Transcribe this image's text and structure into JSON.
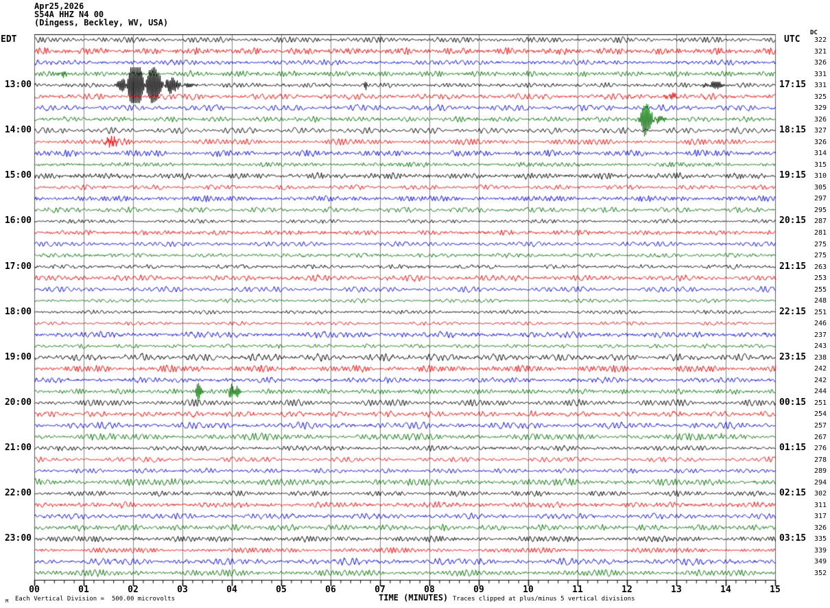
{
  "header": {
    "date": "Apr25,2026",
    "station_line": "S54A HHZ N4 00",
    "location_line": "(Dingess, Beckley, WV, USA)"
  },
  "axis": {
    "left_timezone": "EDT",
    "right_timezone": "UTC",
    "dc_column_header": "DC",
    "x_axis_label": "TIME (MINUTES)",
    "x_tick_labels": [
      "00",
      "01",
      "02",
      "03",
      "04",
      "05",
      "06",
      "07",
      "08",
      "09",
      "10",
      "11",
      "12",
      "13",
      "14",
      "15"
    ]
  },
  "footer": {
    "corner_mark": "M",
    "scale_note": "Each Vertical Division =  500.00 microvolts",
    "clip_note": "Traces clipped at plus/minus 5 vertical divisions"
  },
  "chart_data": {
    "type": "line",
    "subtype": "helicorder-seismogram",
    "station": "S54A HHZ N4 00",
    "date": "Apr25,2026",
    "lines": 48,
    "minutes_per_line": 15,
    "x_range_minutes": [
      0,
      15
    ],
    "first_line_start_edt": "12:00",
    "grid": "vertical gridline every minute, minor x-ticks every 0.2 minute",
    "microvolts_per_division": 500.0,
    "clip_divisions": 5,
    "trace_colors": [
      "#000000",
      "#ee0000",
      "#0000dd",
      "#007000"
    ],
    "grid_color": "#828282",
    "border_color": "#555555",
    "left_hour_labels": [
      {
        "row": 4,
        "label": "13:00"
      },
      {
        "row": 8,
        "label": "14:00"
      },
      {
        "row": 12,
        "label": "15:00"
      },
      {
        "row": 16,
        "label": "16:00"
      },
      {
        "row": 20,
        "label": "17:00"
      },
      {
        "row": 24,
        "label": "18:00"
      },
      {
        "row": 28,
        "label": "19:00"
      },
      {
        "row": 32,
        "label": "20:00"
      },
      {
        "row": 36,
        "label": "21:00"
      },
      {
        "row": 40,
        "label": "22:00"
      },
      {
        "row": 44,
        "label": "23:00"
      }
    ],
    "right_utc_labels": [
      {
        "row": 4,
        "label": "17:15"
      },
      {
        "row": 8,
        "label": "18:15"
      },
      {
        "row": 12,
        "label": "19:15"
      },
      {
        "row": 16,
        "label": "20:15"
      },
      {
        "row": 20,
        "label": "21:15"
      },
      {
        "row": 24,
        "label": "22:15"
      },
      {
        "row": 28,
        "label": "23:15"
      },
      {
        "row": 32,
        "label": "00:15"
      },
      {
        "row": 36,
        "label": "01:15"
      },
      {
        "row": 40,
        "label": "02:15"
      },
      {
        "row": 44,
        "label": "03:15"
      }
    ],
    "dc_offsets": [
      322,
      321,
      326,
      331,
      331,
      325,
      329,
      326,
      327,
      326,
      314,
      315,
      310,
      305,
      297,
      295,
      287,
      281,
      275,
      275,
      263,
      253,
      255,
      248,
      251,
      246,
      237,
      243,
      238,
      242,
      242,
      244,
      251,
      254,
      257,
      267,
      276,
      278,
      289,
      294,
      302,
      311,
      317,
      326,
      335,
      339,
      349,
      352
    ],
    "events": [
      {
        "row": 3,
        "minute": 0.52,
        "rise": 0.03,
        "decay": 0.06,
        "amplitude": 12
      },
      {
        "row": 4,
        "minute": 1.95,
        "rise": 0.12,
        "decay": 0.5,
        "amplitude": 40
      },
      {
        "row": 4,
        "minute": 6.7,
        "rise": 0.012,
        "decay": 0.02,
        "amplitude": 10
      },
      {
        "row": 4,
        "minute": 13.7,
        "rise": 0.1,
        "decay": 0.15,
        "amplitude": 7
      },
      {
        "row": 5,
        "minute": 12.82,
        "rise": 0.05,
        "decay": 0.1,
        "amplitude": 9
      },
      {
        "row": 7,
        "minute": 12.35,
        "rise": 0.06,
        "decay": 0.18,
        "amplitude": 22
      },
      {
        "row": 9,
        "minute": 1.55,
        "rise": 0.12,
        "decay": 0.2,
        "amplitude": 5.5
      },
      {
        "row": 31,
        "minute": 3.3,
        "rise": 0.02,
        "decay": 0.05,
        "amplitude": 14
      },
      {
        "row": 31,
        "minute": 3.95,
        "rise": 0.02,
        "decay": 0.05,
        "amplitude": 20
      },
      {
        "row": 31,
        "minute": 4.1,
        "rise": 0.02,
        "decay": 0.04,
        "amplitude": 8
      },
      {
        "row": 35,
        "minute": 13.9,
        "rise": 0.02,
        "decay": 0.03,
        "amplitude": 6
      }
    ]
  }
}
